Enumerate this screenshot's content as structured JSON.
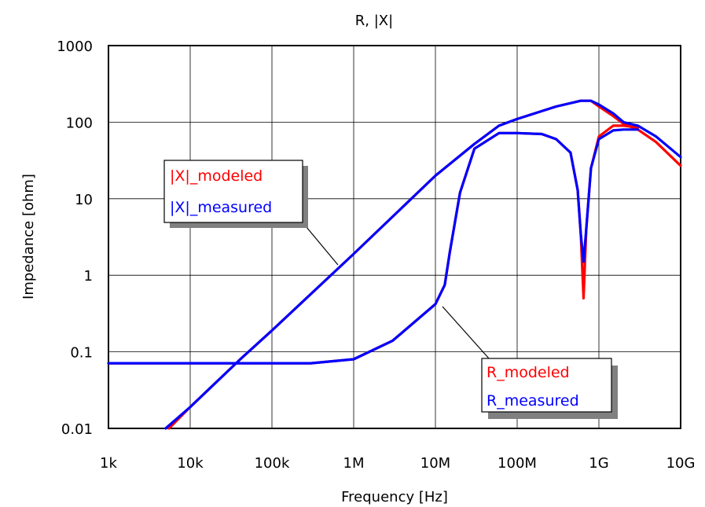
{
  "chart_data": {
    "type": "line",
    "title": "R, |X|",
    "xlabel": "Frequency [Hz]",
    "ylabel": "Impedance [ohm]",
    "x_scale": "log",
    "y_scale": "log",
    "xlim": [
      1000,
      10000000000
    ],
    "ylim": [
      0.01,
      1000
    ],
    "x_ticks": [
      1000,
      10000,
      100000,
      1000000,
      10000000,
      100000000,
      1000000000,
      10000000000
    ],
    "x_tick_labels": [
      "1k",
      "10k",
      "100k",
      "1M",
      "10M",
      "100M",
      "1G",
      "10G"
    ],
    "y_ticks": [
      0.01,
      0.1,
      1,
      10,
      100,
      1000
    ],
    "y_tick_labels": [
      "0.01",
      "0.1",
      "1",
      "10",
      "100",
      "1000"
    ],
    "grid": true,
    "colors": {
      "modeled": "#ff0000",
      "measured": "#0000ff"
    },
    "series": [
      {
        "name": "|X|_modeled",
        "group": "X",
        "color": "#ff0000",
        "x": [
          5500,
          10000,
          40000,
          100000,
          1000000,
          10000000,
          30000000,
          60000000,
          100000000,
          300000000,
          600000000,
          800000000,
          1000000000,
          1500000000,
          2000000000,
          3000000000,
          5000000000,
          10000000000
        ],
        "y": [
          0.01,
          0.019,
          0.078,
          0.19,
          1.9,
          20,
          52,
          90,
          110,
          160,
          190,
          190,
          160,
          120,
          95,
          80,
          55,
          27
        ]
      },
      {
        "name": "|X|_measured",
        "group": "X",
        "color": "#0000ff",
        "x": [
          5000,
          10000,
          40000,
          100000,
          1000000,
          10000000,
          30000000,
          60000000,
          100000000,
          300000000,
          600000000,
          800000000,
          1000000000,
          1500000000,
          2000000000,
          3000000000,
          5000000000,
          10000000000
        ],
        "y": [
          0.01,
          0.019,
          0.078,
          0.19,
          1.9,
          20,
          52,
          90,
          110,
          160,
          190,
          190,
          170,
          130,
          100,
          90,
          65,
          35
        ]
      },
      {
        "name": "R_modeled",
        "group": "R",
        "color": "#ff0000",
        "x": [
          1000,
          100000,
          300000,
          1000000,
          3000000,
          10000000,
          13000000,
          15000000,
          20000000,
          30000000,
          60000000,
          100000000,
          200000000,
          300000000,
          450000000,
          550000000,
          600000000,
          650000000,
          700000000,
          800000000,
          1000000000,
          1500000000,
          2000000000,
          3000000000
        ],
        "y": [
          0.071,
          0.071,
          0.071,
          0.08,
          0.14,
          0.42,
          0.75,
          2,
          12,
          45,
          72,
          72,
          70,
          60,
          40,
          13,
          3.5,
          0.5,
          4,
          25,
          65,
          90,
          90,
          85
        ]
      },
      {
        "name": "R_measured",
        "group": "R",
        "color": "#0000ff",
        "x": [
          1000,
          100000,
          300000,
          1000000,
          3000000,
          10000000,
          13000000,
          15000000,
          20000000,
          30000000,
          60000000,
          100000000,
          200000000,
          300000000,
          450000000,
          550000000,
          600000000,
          650000000,
          700000000,
          800000000,
          1000000000,
          1500000000,
          2000000000,
          3000000000
        ],
        "y": [
          0.071,
          0.071,
          0.071,
          0.08,
          0.14,
          0.42,
          0.75,
          2,
          12,
          45,
          72,
          72,
          70,
          60,
          40,
          13,
          3.5,
          1.5,
          4,
          25,
          60,
          78,
          80,
          80
        ]
      }
    ],
    "legends": [
      {
        "group": "X",
        "entries": [
          {
            "label": "|X|_modeled",
            "color": "#ff0000"
          },
          {
            "label": "|X|_measured",
            "color": "#0000ff"
          }
        ]
      },
      {
        "group": "R",
        "entries": [
          {
            "label": "R_modeled",
            "color": "#ff0000"
          },
          {
            "label": "R_measured",
            "color": "#0000ff"
          }
        ]
      }
    ]
  }
}
